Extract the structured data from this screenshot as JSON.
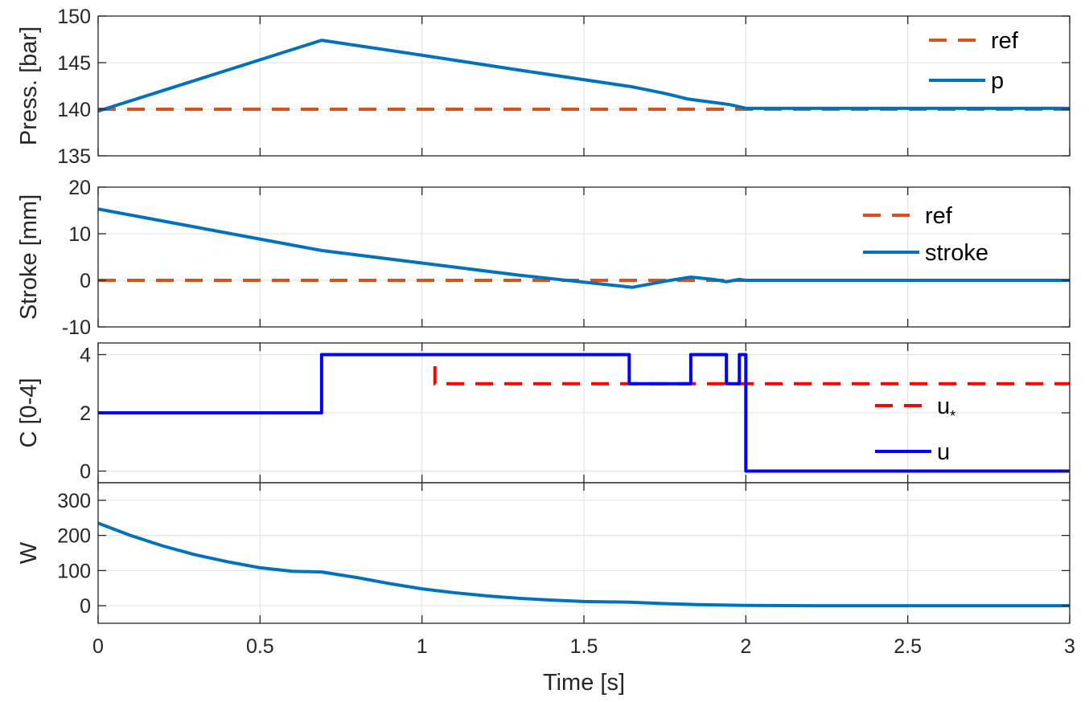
{
  "chart_data": [
    {
      "type": "line",
      "ylabel": "Press. [bar]",
      "ylim": [
        135,
        150
      ],
      "yticks": [
        135,
        140,
        145,
        150
      ],
      "xlim": [
        0,
        3
      ],
      "grid": true,
      "legend_position": "top-right",
      "series": [
        {
          "name": "ref",
          "style": "dashed",
          "color": "#D95319",
          "x": [
            0,
            3
          ],
          "y": [
            140,
            140
          ]
        },
        {
          "name": "p",
          "style": "solid",
          "color": "#0072BD",
          "x": [
            0,
            0.69,
            1.0,
            1.3,
            1.65,
            1.75,
            1.82,
            1.95,
            2.0,
            3.0
          ],
          "y": [
            139.8,
            147.4,
            145.8,
            144.2,
            142.4,
            141.7,
            141.1,
            140.5,
            140.1,
            140.1
          ]
        }
      ]
    },
    {
      "type": "line",
      "ylabel": "Stroke [mm]",
      "ylim": [
        -10,
        20
      ],
      "yticks": [
        -10,
        0,
        10,
        20
      ],
      "xlim": [
        0,
        3
      ],
      "grid": true,
      "legend_position": "top-right",
      "series": [
        {
          "name": "ref",
          "style": "dashed",
          "color": "#D95319",
          "x": [
            0,
            3
          ],
          "y": [
            0,
            0
          ]
        },
        {
          "name": "stroke",
          "style": "solid",
          "color": "#0072BD",
          "x": [
            0,
            0.69,
            1.0,
            1.3,
            1.5,
            1.65,
            1.75,
            1.83,
            1.9,
            1.94,
            1.98,
            2.0,
            3.0
          ],
          "y": [
            15.3,
            6.4,
            3.7,
            1.1,
            -0.4,
            -1.5,
            -0.2,
            0.7,
            0.2,
            -0.3,
            0.2,
            0,
            0
          ]
        }
      ]
    },
    {
      "type": "line",
      "ylabel": "C [0-4]",
      "ylim": [
        -0.4,
        4.4
      ],
      "yticks": [
        0,
        2,
        4
      ],
      "xlim": [
        0,
        3
      ],
      "grid": true,
      "legend_position": "right",
      "series": [
        {
          "name": "u",
          "name_sub": "*",
          "style": "dashed",
          "color": "#FF0000",
          "x": [
            1.04,
            1.04,
            3.0
          ],
          "y": [
            3.6,
            3,
            3
          ]
        },
        {
          "name": "u",
          "style": "solid",
          "color": "#0000FF",
          "x": [
            0,
            0.69,
            0.69,
            1.64,
            1.64,
            1.83,
            1.83,
            1.94,
            1.94,
            1.98,
            1.98,
            2.0,
            2.0,
            3.0
          ],
          "y": [
            2,
            2,
            4,
            4,
            3,
            3,
            4,
            4,
            3,
            3,
            4,
            4,
            0,
            0
          ]
        }
      ]
    },
    {
      "type": "line",
      "ylabel": "W",
      "ylim": [
        -50,
        350
      ],
      "yticks": [
        0,
        100,
        200,
        300
      ],
      "xlim": [
        0,
        3
      ],
      "xticks": [
        0,
        0.5,
        1,
        1.5,
        2,
        2.5,
        3
      ],
      "xtick_labels": [
        "0",
        "0.5",
        "1",
        "1.5",
        "2",
        "2.5",
        "3"
      ],
      "xlabel": "Time [s]",
      "grid": true,
      "series": [
        {
          "name": "",
          "style": "solid",
          "color": "#0072BD",
          "x": [
            0,
            0.1,
            0.2,
            0.3,
            0.4,
            0.5,
            0.6,
            0.69,
            0.8,
            0.9,
            1.0,
            1.1,
            1.2,
            1.3,
            1.4,
            1.5,
            1.64,
            1.75,
            1.85,
            2.0,
            2.2,
            2.5,
            3.0
          ],
          "y": [
            235,
            200,
            170,
            145,
            125,
            108,
            98,
            96,
            80,
            63,
            48,
            37,
            28,
            21,
            16,
            12,
            10,
            6,
            3,
            1,
            0,
            0,
            0
          ]
        }
      ]
    }
  ]
}
